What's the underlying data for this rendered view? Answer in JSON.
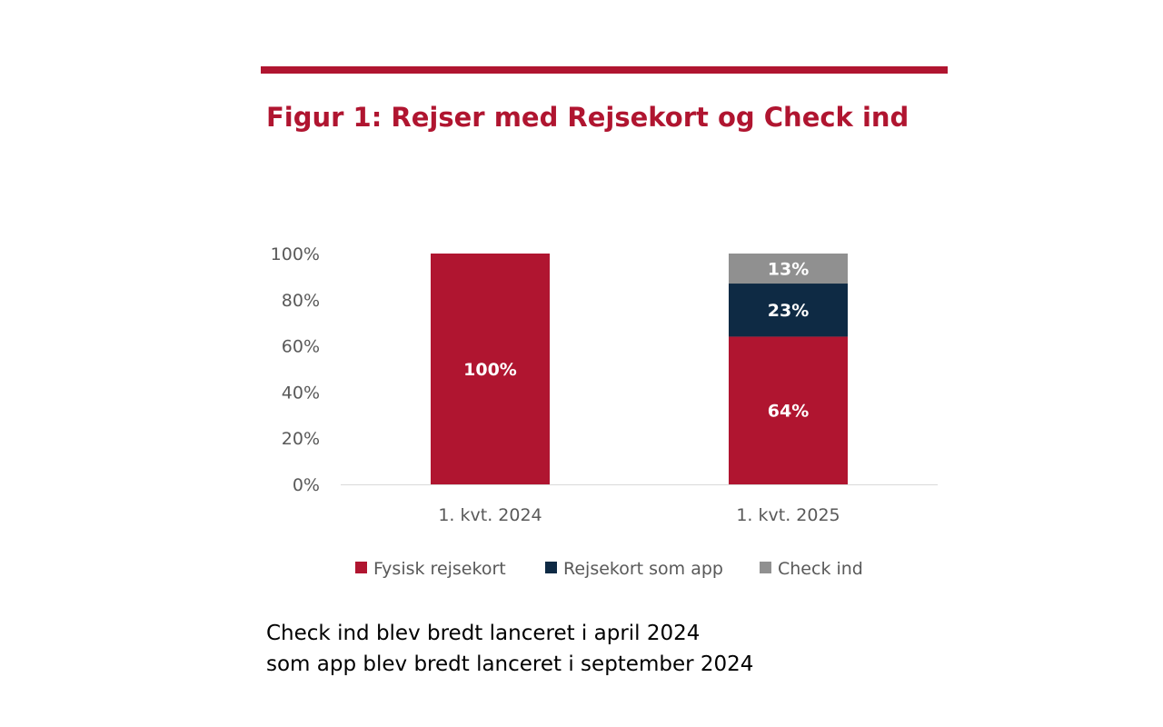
{
  "colors": {
    "accent": "#b01530",
    "navy": "#0e2a44",
    "grey": "#909090"
  },
  "title": "Figur 1: Rejser med Rejsekort og Check ind",
  "notes": [
    "Check ind blev bredt lanceret i april 2024",
    "som app blev bredt lanceret i september 2024"
  ],
  "chart_data": {
    "type": "bar",
    "stacked": true,
    "categories": [
      "1. kvt. 2024",
      "1. kvt. 2025"
    ],
    "series": [
      {
        "name": "Fysisk rejsekort",
        "color": "#b01530",
        "values": [
          100,
          64
        ],
        "labels": [
          "100%",
          "64%"
        ]
      },
      {
        "name": "Rejsekort som app",
        "color": "#0e2a44",
        "values": [
          0,
          23
        ],
        "labels": [
          "",
          "23%"
        ]
      },
      {
        "name": "Check ind",
        "color": "#909090",
        "values": [
          0,
          13
        ],
        "labels": [
          "",
          "13%"
        ]
      }
    ],
    "yticks": [
      "0%",
      "20%",
      "40%",
      "60%",
      "80%",
      "100%"
    ],
    "ylim": [
      0,
      100
    ],
    "grid": false,
    "legend": "bottom"
  }
}
